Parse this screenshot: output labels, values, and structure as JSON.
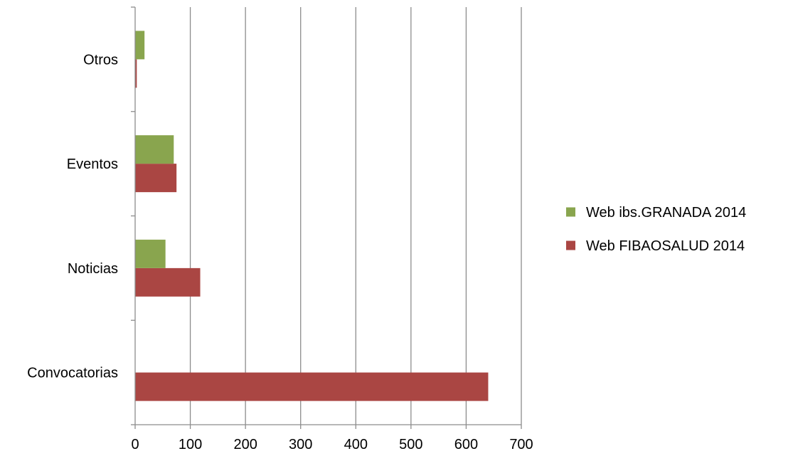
{
  "chart_data": {
    "type": "bar",
    "orientation": "horizontal",
    "categories": [
      "Convocatorias",
      "Noticias",
      "Eventos",
      "Otros"
    ],
    "series": [
      {
        "name": "Web FIBAOSALUD 2014",
        "color": "#AA4643",
        "values": [
          640,
          118,
          75,
          3
        ]
      },
      {
        "name": "Web ibs.GRANADA 2014",
        "color": "#89A54E",
        "values": [
          0,
          55,
          70,
          17
        ]
      }
    ],
    "xlim": [
      0,
      700
    ],
    "xticks": [
      0,
      100,
      200,
      300,
      400,
      500,
      600,
      700
    ],
    "grid": true,
    "legend_position": "right",
    "legend_order": [
      "Web ibs.GRANADA 2014",
      "Web FIBAOSALUD 2014"
    ],
    "title": "",
    "xlabel": "",
    "ylabel": ""
  }
}
